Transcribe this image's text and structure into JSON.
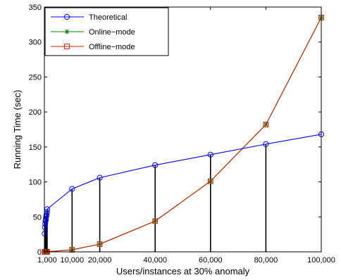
{
  "chart_data": {
    "type": "line",
    "title": "",
    "xlabel": "Users/instances at 30% anomaly",
    "ylabel": "Running Time (sec)",
    "xlim": [
      0,
      100000
    ],
    "ylim": [
      0,
      350
    ],
    "grid": false,
    "legend_position": "top-left",
    "xticks": [
      1000,
      10000,
      20000,
      40000,
      60000,
      80000,
      100000
    ],
    "xtick_labels": [
      "1,000",
      "10,000",
      "20,000",
      "40,000",
      "60,000",
      "80,000",
      "100,000"
    ],
    "yticks": [
      0,
      50,
      100,
      150,
      200,
      250,
      300,
      350
    ],
    "ytick_labels": [
      "0",
      "50",
      "100",
      "150",
      "200",
      "250",
      "300",
      "350"
    ],
    "vertical_stems_at": [
      100,
      200,
      300,
      400,
      500,
      600,
      700,
      800,
      900,
      1000,
      10000,
      20000,
      40000,
      60000,
      80000
    ],
    "series": [
      {
        "name": "Theoretical",
        "color": "#0000ff",
        "marker": "circle",
        "x": [
          100,
          200,
          300,
          400,
          500,
          600,
          700,
          800,
          900,
          1000,
          10000,
          20000,
          40000,
          60000,
          80000,
          100000
        ],
        "y": [
          26,
          35,
          40,
          44,
          46,
          50,
          52,
          54,
          57,
          61,
          90,
          106,
          124,
          139,
          154,
          168
        ]
      },
      {
        "name": "Online−mode",
        "color": "#008000",
        "marker": "star",
        "x": [
          100,
          200,
          300,
          400,
          500,
          600,
          700,
          800,
          900,
          1000,
          10000,
          20000,
          40000,
          60000,
          80000,
          100000
        ],
        "y": [
          0,
          0,
          0,
          0,
          0,
          0,
          0,
          0,
          0,
          0.2,
          3,
          11,
          44,
          101,
          182,
          335
        ]
      },
      {
        "name": "Offline−mode",
        "color": "#cc2200",
        "marker": "square",
        "x": [
          100,
          200,
          300,
          400,
          500,
          600,
          700,
          800,
          900,
          1000,
          10000,
          20000,
          40000,
          60000,
          80000,
          100000
        ],
        "y": [
          0,
          0,
          0,
          0,
          0,
          0,
          0,
          0,
          0,
          0.2,
          3,
          11,
          44,
          101,
          182,
          335
        ]
      }
    ]
  }
}
